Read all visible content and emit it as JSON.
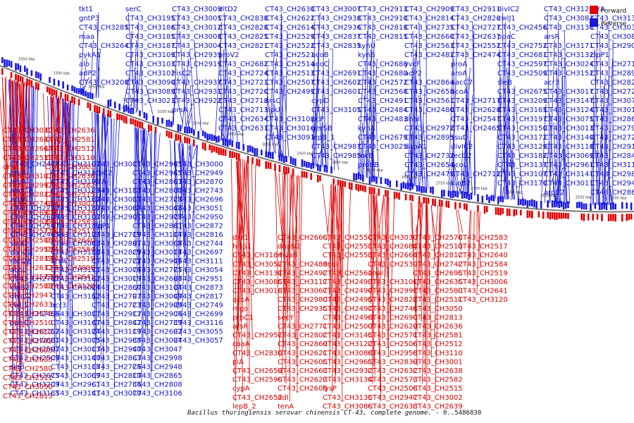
{
  "colors": {
    "forward": "#e00000",
    "reverse": "#1a1adc",
    "backbone": "#888888"
  },
  "legend": {
    "forward_label": "Forward",
    "reverse_label": "Reverse"
  },
  "caption": {
    "title": "Bacillus thuringiensis serovar chinensis CT-43, complete genome.",
    "range": "0..5486830"
  },
  "scale_ticks": [
    "3350 kbp",
    "3300 kbp",
    "3250 kbp",
    "3200 kbp",
    "3150 kbp",
    "3100 kbp",
    "3050 kbp",
    "3000 kbp",
    "2950 kbp",
    "2900 kbp",
    "2850 kbp",
    "2800 kbp",
    "2750 kbp",
    "2700 kbp",
    "2650 kbp",
    "2600 kbp",
    "2550 kbp",
    "2500 kbp"
  ],
  "reverse_genes": [
    "tkt1",
    "gntP3",
    "CT43_CH3285",
    "maa",
    "CT43_CH3264",
    "pykA1",
    "alo",
    "adP2",
    "CT43_CH3208",
    "serC",
    "CT43_CH3195",
    "CT43_CH3186",
    "CT43_CH3185",
    "CT43_CH3187",
    "CT43_CH3109",
    "CT43_CH3103",
    "CT43_CH3102",
    "CT43_CH3090",
    "CT43_CH3089",
    "CT43_CH3021",
    "CT43_CH3009",
    "CT43_CH3005",
    "CT43_CH3012",
    "CT43_CH3008",
    "CT43_CH3004",
    "CT43_CH2939",
    "CT43_CH2919",
    "hisC2",
    "CT43_CH2937",
    "CT43_CH2931",
    "CT43_CH2922",
    "prsA",
    "dltD2",
    "CT43_CH2838",
    "CT43_CH2828",
    "CT43_CH2825",
    "CT43_CH2821",
    "proV2",
    "CT43_CH2682",
    "CT43_CH2724",
    "CT43_CH2721",
    "CT43_CH2720",
    "CT43_CH2718",
    "CT43_CH2713",
    "CT43_CH2634",
    "CT43_CH2631",
    "CT43_CH2630",
    "CT43_CH2622",
    "CT43_CH2614",
    "CT43_CH2529",
    "CT43_CH2522",
    "CT43_CH2521",
    "CT43_CH2514",
    "CT43_CH2513",
    "CT43_CH2507",
    "CT43_CH2499",
    "arsC",
    "sipU",
    "CT43_CH3108",
    "CT43_CH3016",
    "CT43_CH3091",
    "CT43_CH3007",
    "CT43_CH2938",
    "CT43_CH2936",
    "CT43_CH2837",
    "CT43_CH2835",
    "acoB",
    "acoC",
    "CT43_CH2691",
    "CT43_CH2602",
    "CT43_CH2601",
    "cypD",
    "CT43_CH3105",
    "pcP",
    "gerSB",
    "lepB_1",
    "CT43_CH2987",
    "CT43_CH2985",
    "CT43_CH2913",
    "CT43_CH2910",
    "CT43_CH2818",
    "CT43_CH2815",
    "kynU",
    "kynB",
    "CT43_CH2688",
    "CT43_CH2680",
    "CT43_CH2572",
    "CT43_CH2568",
    "CT43_CH2491",
    "CT43_CH2484",
    "CT43_CH2483",
    "kynA",
    "CT43_CH2679",
    "CT43_CH3025",
    "rocB",
    "probB",
    "CT43_CH2909",
    "CT43_CH2814",
    "CT43_CH2735",
    "CT43_CH2660",
    "CT43_CH2563",
    "CT43_CH2482",
    "yvcF",
    "adP2",
    "CT43_CH2864",
    "CT43_CH2658",
    "CT43_CH2561",
    "CT43_CH2480",
    "dnaI",
    "CT43_CH2972",
    "CT43_CH2895",
    "dapA1",
    "CT43_CH2732",
    "CT43_CH2654",
    "CT43_CH2479",
    "CT43_CH2911",
    "CT43_CH2820",
    "CT43_CH2727",
    "CT43_CH2637",
    "CT43_CH2552",
    "CT43_CH2474",
    "proA",
    "aroA",
    "aacC7",
    "acoA",
    "CT43_CH2717",
    "CT43_CH2628",
    "CT43_CH2547",
    "CT43_CH2465",
    "ssuD",
    "divIC2",
    "recQ2",
    "acoL",
    "CT43_CH2712",
    "kinB2",
    "divIC2",
    "cwlJ1",
    "CT43_CH2456",
    "ppaC",
    "CT43_CH2752",
    "CT43_CH2681",
    "CT43_CH2597",
    "CT43_CH2509",
    "sleB",
    "CT43_CH2675",
    "CT43_CH3209",
    "CT43_CH3165",
    "CT43_CH3197",
    "CT43_CH3150",
    "CT43_CH3172",
    "CT43_CH3129",
    "CT43_CH3182",
    "CT43_CH3137",
    "CT43_CH3107",
    "CT43_CH3170",
    "CT43_CH3128",
    "CT43_CH3083",
    "CT43_CH3130",
    "arsR",
    "CT43_CH3171",
    "CT43_CH3132",
    "CT43_CH3024",
    "CT43_CH3152",
    "acr3",
    "CT43_CH3017",
    "CT43_CH3147",
    "CT43_CH3124",
    "CT43_CH3075",
    "CT43_CH3013",
    "CT43_CH3140",
    "CT43_CH3118",
    "CT43_CH3069",
    "CT43_CH2961",
    "CT43_CH3141",
    "CT43_CH3011",
    "aroC2",
    "tyrA",
    "CT43_CH3133",
    "CT43_CH3037",
    "CT43_CH3084",
    "CT43_CH2901",
    "clpP1",
    "CT43_CH2719",
    "CT43_CH2897",
    "CT43_CH2829",
    "CT43_CH2722",
    "CT43_CH3076",
    "CT43_CH3019",
    "CT43_CH2860",
    "CT43_CH2797",
    "CT43_CH2723",
    "CT43_CH2912",
    "CT43_CH2842",
    "CT43_CH3119",
    "CT43_CH2988",
    "CT43_CH2940",
    "CT43_CH2863",
    "CT43_CH2726",
    "CT43_CH2810",
    "CT43_CH2736",
    "CT43_CH3070",
    "CT43_CH2995",
    "CT43_CH2945",
    "CT43_CH2861",
    "CT43_CH2800",
    "CT43_CH2728",
    "CT43_CH3048",
    "CT43_CH2978",
    "CT43_CH2881",
    "CT43_CH3114",
    "CT43_CH3068",
    "CT43_CH3014",
    "CT43_CH2946",
    "CT43_CH2775",
    "CT43_CH2698",
    "CT43_CH3104",
    "CT43_CH3049",
    "CT43_CH2999",
    "CT43_CH2906",
    "CT43_CH2739",
    "CT43_CH2692",
    "CT43_CH3094",
    "CT43_CH3047",
    "CT43_CH2998",
    "CT43_CH2948",
    "CT43_CH2865",
    "CT43_CH2808",
    "CT43_CH3106",
    "CT43_CH3000",
    "CT43_CH2949",
    "CT43_CH2870",
    "CT43_CH2743",
    "CT43_CH2696",
    "CT43_CH3051",
    "CT43_CH2950",
    "CT43_CH2872",
    "CT43_CH2816",
    "CT43_CH2744",
    "CT43_CH2697",
    "CT43_CH3111",
    "CT43_CH3054",
    "CT43_CH2951",
    "CT43_CH2873",
    "CT43_CH2817",
    "CT43_CH2749",
    "CT43_CH2699",
    "CT43_CH3116",
    "CT43_CH3055",
    "CT43_CH3057"
  ],
  "forward_genes": [
    "dxr1",
    "hisS1",
    "CT43_CH3184",
    "CT43_CH3052",
    "CT43_CH3131",
    "CT43_CH3085",
    "CT43_CH3018",
    "accA",
    "mgo",
    "proC1",
    "arsR",
    "CT43_CH2957",
    "coaA",
    "CT43_CH2830",
    "piA",
    "CT43_CH2659",
    "CT43_CH2596",
    "cypA",
    "CT43_CH2652",
    "lepB_2",
    "CT43_CH2666",
    "dnaN2",
    "mvaB",
    "CT43_CH2489",
    "CT43_CH2492",
    "CT43_CH3117",
    "CT43_CH3067",
    "CT43_CH2980",
    "CT43_CH2935",
    "secY",
    "CT43_CH2771",
    "CT43_CH2802",
    "CT43_CH2869",
    "CT43_CH2621",
    "CT43_CH2605",
    "CT43_CH2663",
    "CT43_CH2623",
    "CT43_CH2608",
    "ddl",
    "tenA",
    "CT43_CH2550",
    "CT43_CH2551",
    "CT43_CH2553",
    "dnaI",
    "CT43_CH2562",
    "CT43_CH2493",
    "CT43_CH2494",
    "CT43_CH2495",
    "CT43_CH2497",
    "CT43_CH2498",
    "CT43_CH2500",
    "CT43_CH3145",
    "CT43_CH3122",
    "CT43_CH3088",
    "CT43_CH2965",
    "CT43_CH2932",
    "CT43_CH3134",
    "lysP",
    "CT43_CH3135",
    "CT43_CH3086",
    "CT43_CH3030",
    "CT43_CH2684",
    "CT43_CH2664",
    "CT43_CH2539",
    "dnaI",
    "CT43_CH3101",
    "CT43_CH2997",
    "CT43_CH2822",
    "CT43_CH2748",
    "CT43_CH2690",
    "CT43_CH2629",
    "CT43_CH2571",
    "CT43_CH2506",
    "CT43_CH2958",
    "CT43_CH2839",
    "CT43_CH2632",
    "CT43_CH2573",
    "CT43_CH2508",
    "CT43_CH2947",
    "CT43_CH2633",
    "CT43_CH2578",
    "CT43_CH2510",
    "CT43_CH2812",
    "CT43_CH2742",
    "CT43_CH2695",
    "CT43_CH2635",
    "CT43_CH2580",
    "CT43_CH2511",
    "CT43_CH3050",
    "CT43_CH2813",
    "CT43_CH2636",
    "CT43_CH2581",
    "CT43_CH2512",
    "CT43_CH3110",
    "CT43_CH3001",
    "CT43_CH2638",
    "CT43_CH2582",
    "CT43_CH2515",
    "CT43_CH3002",
    "CT43_CH2639",
    "CT43_CH2583",
    "CT43_CH2517",
    "CT43_CH2640",
    "CT43_CH2584",
    "CT43_CH2519",
    "CT43_CH3006",
    "CT43_CH2641",
    "CT43_CH3120"
  ]
}
